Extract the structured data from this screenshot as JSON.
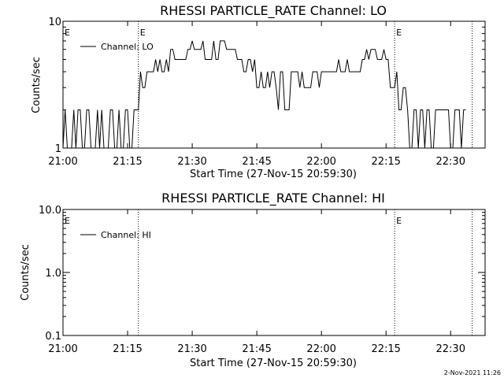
{
  "footer": {
    "timestamp": "2-Nov-2021 11:26"
  },
  "chart_data": [
    {
      "type": "line",
      "title": "RHESSI PARTICLE_RATE Channel: LO",
      "xlabel": "Start Time (27-Nov-15 20:59:30)",
      "ylabel": "Counts/sec",
      "yscale": "log",
      "xlim": [
        "21:00",
        "22:38"
      ],
      "ylim": [
        1,
        10
      ],
      "x_ticks": [
        "21:00",
        "21:15",
        "21:30",
        "21:45",
        "22:00",
        "22:15",
        "22:30"
      ],
      "y_ticks": [
        "1",
        "10"
      ],
      "legend": {
        "labels": [
          "Channel: LO"
        ],
        "position": "top-left"
      },
      "markers": [
        {
          "time": "21:17.5",
          "label": "E"
        },
        {
          "time": "22:17",
          "label": "E"
        },
        {
          "time": "22:35",
          "label": ""
        },
        {
          "time": "21:00",
          "label": "E"
        }
      ],
      "series": [
        {
          "name": "Channel: LO",
          "segments": [
            [
              "21:00",
              1,
              2
            ],
            [
              "21:05",
              1,
              2
            ],
            [
              "21:10",
              1,
              2
            ],
            [
              "21:16",
              1,
              2
            ],
            [
              "21:17",
              2,
              2.5
            ],
            [
              "21:18",
              3,
              4
            ],
            [
              "21:20",
              4,
              5
            ],
            [
              "21:25",
              5,
              6
            ],
            [
              "21:30",
              6,
              7
            ],
            [
              "21:33",
              5,
              7
            ],
            [
              "21:38",
              5,
              6
            ],
            [
              "21:42",
              4,
              5
            ],
            [
              "21:45",
              3,
              4
            ],
            [
              "21:50",
              2,
              4
            ],
            [
              "21:55",
              3,
              4
            ],
            [
              "22:00",
              4,
              5
            ],
            [
              "22:05",
              4,
              5
            ],
            [
              "22:10",
              5,
              6
            ],
            [
              "22:14",
              5,
              6
            ],
            [
              "22:16",
              3,
              4
            ],
            [
              "22:18",
              2,
              3
            ],
            [
              "22:20",
              1,
              2
            ],
            [
              "22:25",
              1,
              2
            ],
            [
              "22:30",
              1,
              2
            ],
            [
              "22:34",
              1,
              2
            ]
          ]
        }
      ]
    },
    {
      "type": "line",
      "title": "RHESSI PARTICLE_RATE Channel: HI",
      "xlabel": "Start Time (27-Nov-15 20:59:30)",
      "ylabel": "Counts/sec",
      "yscale": "log",
      "xlim": [
        "21:00",
        "22:38"
      ],
      "ylim": [
        0.1,
        10
      ],
      "x_ticks": [
        "21:00",
        "21:15",
        "21:30",
        "21:45",
        "22:00",
        "22:15",
        "22:30"
      ],
      "y_ticks": [
        "0.1",
        "1.0",
        "10.0"
      ],
      "legend": {
        "labels": [
          "Channel: HI"
        ],
        "position": "top-left"
      },
      "markers": [
        {
          "time": "21:17.5",
          "label": ""
        },
        {
          "time": "22:17",
          "label": "E"
        },
        {
          "time": "22:35",
          "label": ""
        },
        {
          "time": "21:00",
          "label": "E"
        }
      ],
      "series": [
        {
          "name": "Channel: HI",
          "segments": []
        }
      ]
    }
  ]
}
